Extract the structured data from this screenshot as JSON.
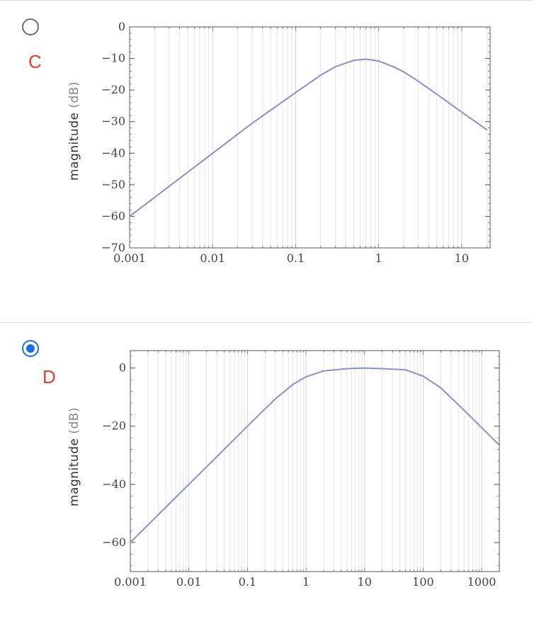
{
  "options": [
    {
      "letter": "C",
      "selected": false,
      "chart_data": {
        "type": "line",
        "ylabel_main": "magnitude",
        "ylabel_unit": "(dB)",
        "xscale": "log",
        "xlim": [
          0.001,
          22
        ],
        "ylim": [
          -70,
          0
        ],
        "xticks": [
          0.001,
          0.01,
          0.1,
          1,
          10
        ],
        "xtick_labels": [
          "0.001",
          "0.01",
          "0.1",
          "1",
          "10"
        ],
        "yticks": [
          0,
          -10,
          -20,
          -30,
          -40,
          -50,
          -60,
          -70
        ],
        "ytick_labels": [
          "0",
          "−10",
          "−20",
          "−30",
          "−40",
          "−50",
          "−60",
          "−70"
        ],
        "grid": true,
        "line_color": "#8a8fd0",
        "series": [
          {
            "x": [
              0.001,
              0.003,
              0.01,
              0.03,
              0.1,
              0.2,
              0.3,
              0.5,
              0.7,
              1,
              1.5,
              2,
              3,
              5,
              10,
              20
            ],
            "values": [
              -60,
              -50.5,
              -40,
              -30.5,
              -20.8,
              -15.3,
              -12.6,
              -10.6,
              -10.2,
              -10.8,
              -12.6,
              -14.2,
              -17.2,
              -21.3,
              -27,
              -32.5
            ]
          }
        ]
      }
    },
    {
      "letter": "D",
      "selected": true,
      "chart_data": {
        "type": "line",
        "ylabel_main": "magnitude",
        "ylabel_unit": "(dB)",
        "xscale": "log",
        "xlim": [
          0.001,
          2000
        ],
        "ylim": [
          -70,
          6
        ],
        "xticks": [
          0.001,
          0.01,
          0.1,
          1,
          10,
          100,
          1000
        ],
        "xtick_labels": [
          "0.001",
          "0.01",
          "0.1",
          "1",
          "10",
          "100",
          "1000"
        ],
        "yticks": [
          0,
          -20,
          -40,
          -60
        ],
        "ytick_labels": [
          "0",
          "−20",
          "−40",
          "−60"
        ],
        "grid": true,
        "line_color": "#8a8fd0",
        "series": [
          {
            "x": [
              0.001,
              0.01,
              0.1,
              0.3,
              0.6,
              1,
              2,
              5,
              10,
              20,
              50,
              100,
              200,
              500,
              1000,
              2000
            ],
            "values": [
              -60,
              -40,
              -20,
              -10.6,
              -5.6,
              -3,
              -1,
              -0.2,
              0,
              -0.2,
              -0.6,
              -2.8,
              -6.8,
              -14.5,
              -20.5,
              -26.5
            ]
          }
        ]
      }
    }
  ]
}
